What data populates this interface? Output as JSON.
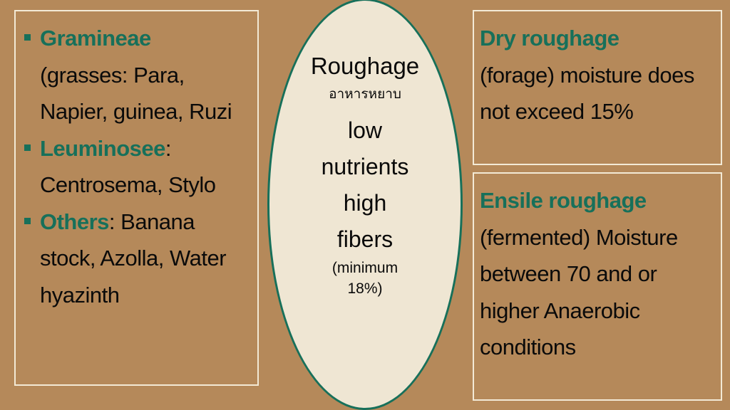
{
  "colors": {
    "background": "#b5895a",
    "accent": "#17705a",
    "ellipse_fill": "#efe6d3",
    "border": "#f3ead6"
  },
  "left": {
    "items": [
      {
        "head": "Gramineae",
        "rest": " (grasses: Para, Napier, guinea, Ruzi"
      },
      {
        "head": "Leuminosee",
        "rest": ": Centrosema, Stylo"
      },
      {
        "head": "Others",
        "rest": ": Banana stock, Azolla, Water hyazinth"
      }
    ]
  },
  "center": {
    "title": "Roughage",
    "thai": "อาหารหยาบ",
    "line1": "low",
    "line2": "nutrients",
    "line3": "high",
    "line4": "fibers",
    "note1": "(minimum",
    "note2": "18%)"
  },
  "right_top": {
    "head": "Dry roughage",
    "rest": "(forage) moisture does not exceed 15%"
  },
  "right_bottom": {
    "head": "Ensile roughage",
    "rest": "(fermented) Moisture between 70 and or higher Anaerobic conditions"
  }
}
